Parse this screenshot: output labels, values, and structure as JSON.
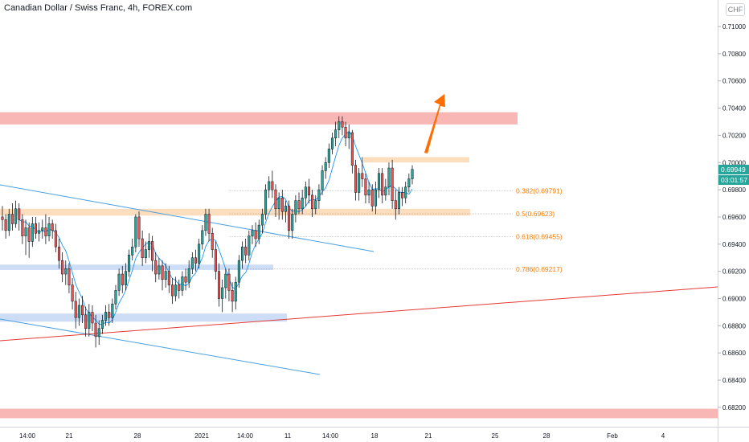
{
  "header": {
    "title": "Canadian Dollar / Swiss Franc, 4h, FOREX.com",
    "currency": "CHF"
  },
  "price_badges": {
    "last_price": "0.69949",
    "countdown": "03:01:57"
  },
  "colors": {
    "bull": "#26a69a",
    "bear": "#ef5350",
    "ma": "#2196f3",
    "red_zone": "#f7a9a8",
    "orange_zone": "#fcd8b4",
    "blue_zone": "#c5d7f5",
    "fib": "#f57c00",
    "trend_blue": "#4a9fe0",
    "trend_red": "#e53935",
    "arrow": "#ff6d00"
  },
  "chart_data": {
    "type": "candlestick",
    "title": "Canadian Dollar / Swiss Franc, 4h, FOREX.com",
    "ylim": [
      0.6812,
      0.7123
    ],
    "y_ticks": [
      "0.71000",
      "0.70800",
      "0.70600",
      "0.70400",
      "0.70200",
      "0.70000",
      "0.69800",
      "0.69600",
      "0.69400",
      "0.69200",
      "0.69000",
      "0.68800",
      "0.68600",
      "0.68400",
      "0.68200"
    ],
    "x_ticks": [
      "14:00",
      "21",
      "28",
      "2021",
      "14:00",
      "11",
      "14:00",
      "18",
      "21",
      "25",
      "28",
      "Feb",
      "4"
    ],
    "last_price": 0.69949,
    "fib_levels": [
      {
        "label": "0.382(0.69791)",
        "value": 0.69791
      },
      {
        "label": "0.5(0.69623)",
        "value": 0.69623
      },
      {
        "label": "0.618(0.69455)",
        "value": 0.69455
      },
      {
        "label": "0.786(0.69217)",
        "value": 0.69217
      }
    ],
    "zones": [
      {
        "name": "resistance-zone-top",
        "color": "red",
        "from": 0.7028,
        "to": 0.7037
      },
      {
        "name": "supply-zone-small",
        "color": "orange",
        "from": 0.7,
        "to": 0.7004
      },
      {
        "name": "support-zone-mid",
        "color": "orange",
        "from": 0.6961,
        "to": 0.6966
      },
      {
        "name": "demand-zone-1",
        "color": "blue",
        "from": 0.6921,
        "to": 0.6925
      },
      {
        "name": "demand-zone-2",
        "color": "blue",
        "from": 0.6883,
        "to": 0.6889
      },
      {
        "name": "resistance-zone-bottom",
        "color": "red",
        "from": 0.6812,
        "to": 0.6819
      }
    ],
    "candles": [
      [
        0.696,
        0.6958,
        0.6968,
        0.695
      ],
      [
        0.6958,
        0.695,
        0.6962,
        0.6944
      ],
      [
        0.695,
        0.6962,
        0.6966,
        0.6946
      ],
      [
        0.6962,
        0.6955,
        0.697,
        0.695
      ],
      [
        0.6955,
        0.6966,
        0.6972,
        0.6952
      ],
      [
        0.6966,
        0.6958,
        0.697,
        0.695
      ],
      [
        0.6958,
        0.6946,
        0.6962,
        0.694
      ],
      [
        0.6946,
        0.6952,
        0.6958,
        0.6932
      ],
      [
        0.6952,
        0.6942,
        0.6956,
        0.693
      ],
      [
        0.6942,
        0.6955,
        0.696,
        0.6938
      ],
      [
        0.6955,
        0.6948,
        0.696,
        0.6944
      ],
      [
        0.6948,
        0.695,
        0.6956,
        0.6942
      ],
      [
        0.695,
        0.6952,
        0.6958,
        0.6944
      ],
      [
        0.6952,
        0.6946,
        0.6962,
        0.694
      ],
      [
        0.6946,
        0.6955,
        0.696,
        0.6942
      ],
      [
        0.6955,
        0.695,
        0.6958,
        0.6944
      ],
      [
        0.695,
        0.6938,
        0.6955,
        0.6934
      ],
      [
        0.6938,
        0.6928,
        0.6944,
        0.6922
      ],
      [
        0.6928,
        0.6918,
        0.6934,
        0.6912
      ],
      [
        0.6918,
        0.6922,
        0.6928,
        0.691
      ],
      [
        0.6922,
        0.691,
        0.6926,
        0.6904
      ],
      [
        0.691,
        0.6898,
        0.6915,
        0.6892
      ],
      [
        0.6898,
        0.6886,
        0.6905,
        0.6878
      ],
      [
        0.6886,
        0.6895,
        0.69,
        0.688
      ],
      [
        0.6895,
        0.6888,
        0.6902,
        0.6882
      ],
      [
        0.6888,
        0.6878,
        0.6894,
        0.6872
      ],
      [
        0.6878,
        0.689,
        0.6896,
        0.6872
      ],
      [
        0.689,
        0.6882,
        0.6895,
        0.6876
      ],
      [
        0.6882,
        0.6872,
        0.6888,
        0.6864
      ],
      [
        0.6872,
        0.6878,
        0.6884,
        0.6866
      ],
      [
        0.6878,
        0.6884,
        0.6888,
        0.6874
      ],
      [
        0.6884,
        0.689,
        0.6895,
        0.688
      ],
      [
        0.689,
        0.6886,
        0.6896,
        0.688
      ],
      [
        0.6886,
        0.6896,
        0.69,
        0.6882
      ],
      [
        0.6896,
        0.6906,
        0.691,
        0.6892
      ],
      [
        0.6906,
        0.6918,
        0.6922,
        0.6902
      ],
      [
        0.6918,
        0.691,
        0.6924,
        0.6904
      ],
      [
        0.691,
        0.692,
        0.6926,
        0.6906
      ],
      [
        0.692,
        0.6932,
        0.6936,
        0.6916
      ],
      [
        0.6932,
        0.6938,
        0.6944,
        0.6928
      ],
      [
        0.6938,
        0.696,
        0.6962,
        0.6934
      ],
      [
        0.696,
        0.6944,
        0.6964,
        0.6938
      ],
      [
        0.6944,
        0.693,
        0.695,
        0.6924
      ],
      [
        0.693,
        0.6936,
        0.6942,
        0.6926
      ],
      [
        0.6936,
        0.6942,
        0.6948,
        0.693
      ],
      [
        0.6942,
        0.6928,
        0.6946,
        0.692
      ],
      [
        0.6928,
        0.6918,
        0.6934,
        0.6912
      ],
      [
        0.6918,
        0.6924,
        0.693,
        0.6914
      ],
      [
        0.6924,
        0.6914,
        0.6928,
        0.6906
      ],
      [
        0.6914,
        0.692,
        0.6926,
        0.6908
      ],
      [
        0.692,
        0.691,
        0.6924,
        0.6904
      ],
      [
        0.691,
        0.6902,
        0.6915,
        0.6896
      ],
      [
        0.6902,
        0.691,
        0.6916,
        0.6898
      ],
      [
        0.691,
        0.6906,
        0.6914,
        0.69
      ],
      [
        0.6906,
        0.6916,
        0.692,
        0.6902
      ],
      [
        0.6916,
        0.6912,
        0.6922,
        0.6906
      ],
      [
        0.6912,
        0.6922,
        0.6928,
        0.6908
      ],
      [
        0.6922,
        0.693,
        0.6934,
        0.6918
      ],
      [
        0.693,
        0.6926,
        0.6936,
        0.692
      ],
      [
        0.6926,
        0.694,
        0.6944,
        0.6922
      ],
      [
        0.694,
        0.695,
        0.6954,
        0.6936
      ],
      [
        0.695,
        0.6962,
        0.6966,
        0.6946
      ],
      [
        0.6962,
        0.6948,
        0.6966,
        0.6942
      ],
      [
        0.6948,
        0.6936,
        0.6952,
        0.693
      ],
      [
        0.6936,
        0.692,
        0.6942,
        0.6914
      ],
      [
        0.692,
        0.69,
        0.6926,
        0.6894
      ],
      [
        0.69,
        0.6908,
        0.6914,
        0.689
      ],
      [
        0.6908,
        0.6918,
        0.6922,
        0.69
      ],
      [
        0.6918,
        0.6906,
        0.6922,
        0.6898
      ],
      [
        0.6906,
        0.6898,
        0.6912,
        0.689
      ],
      [
        0.6898,
        0.6912,
        0.6916,
        0.6892
      ],
      [
        0.6912,
        0.6928,
        0.6932,
        0.6908
      ],
      [
        0.6928,
        0.6938,
        0.6942,
        0.6922
      ],
      [
        0.6938,
        0.6932,
        0.6944,
        0.6926
      ],
      [
        0.6932,
        0.6946,
        0.695,
        0.6928
      ],
      [
        0.6946,
        0.695,
        0.6954,
        0.694
      ],
      [
        0.695,
        0.6944,
        0.6956,
        0.6938
      ],
      [
        0.6944,
        0.6954,
        0.6958,
        0.694
      ],
      [
        0.6954,
        0.6962,
        0.6966,
        0.6948
      ],
      [
        0.6962,
        0.698,
        0.6984,
        0.6958
      ],
      [
        0.698,
        0.6986,
        0.699,
        0.6974
      ],
      [
        0.6986,
        0.698,
        0.6994,
        0.6974
      ],
      [
        0.698,
        0.6966,
        0.6984,
        0.696
      ],
      [
        0.6966,
        0.6974,
        0.6978,
        0.6958
      ],
      [
        0.6974,
        0.6964,
        0.698,
        0.6958
      ],
      [
        0.6964,
        0.6968,
        0.6972,
        0.6956
      ],
      [
        0.6968,
        0.695,
        0.6972,
        0.6944
      ],
      [
        0.695,
        0.6962,
        0.6966,
        0.6944
      ],
      [
        0.6962,
        0.6972,
        0.6976,
        0.6956
      ],
      [
        0.6972,
        0.6966,
        0.6978,
        0.6962
      ],
      [
        0.6966,
        0.6974,
        0.698,
        0.6962
      ],
      [
        0.6974,
        0.6982,
        0.6986,
        0.6968
      ],
      [
        0.6982,
        0.6976,
        0.6988,
        0.697
      ],
      [
        0.6976,
        0.6966,
        0.698,
        0.696
      ],
      [
        0.6966,
        0.6972,
        0.6976,
        0.6962
      ],
      [
        0.6972,
        0.698,
        0.6984,
        0.6966
      ],
      [
        0.698,
        0.6994,
        0.6998,
        0.6976
      ],
      [
        0.6994,
        0.7,
        0.7004,
        0.6988
      ],
      [
        0.7,
        0.701,
        0.7014,
        0.6996
      ],
      [
        0.701,
        0.7018,
        0.7022,
        0.7006
      ],
      [
        0.7018,
        0.7024,
        0.703,
        0.7012
      ],
      [
        0.7024,
        0.703,
        0.7034,
        0.7018
      ],
      [
        0.703,
        0.7026,
        0.7034,
        0.702
      ],
      [
        0.7026,
        0.7018,
        0.703,
        0.7012
      ],
      [
        0.7018,
        0.7022,
        0.7028,
        0.701
      ],
      [
        0.7022,
        0.6998,
        0.7024,
        0.6992
      ],
      [
        0.6998,
        0.6978,
        0.7002,
        0.6972
      ],
      [
        0.6978,
        0.6992,
        0.6996,
        0.6972
      ],
      [
        0.6992,
        0.6988,
        0.7004,
        0.6982
      ],
      [
        0.6988,
        0.6976,
        0.6992,
        0.697
      ],
      [
        0.6976,
        0.698,
        0.6986,
        0.697
      ],
      [
        0.698,
        0.6968,
        0.6984,
        0.6964
      ],
      [
        0.6968,
        0.698,
        0.6986,
        0.6962
      ],
      [
        0.698,
        0.6992,
        0.6996,
        0.6974
      ],
      [
        0.6992,
        0.6976,
        0.6996,
        0.697
      ],
      [
        0.6976,
        0.6982,
        0.6988,
        0.6972
      ],
      [
        0.6982,
        0.6996,
        0.7,
        0.6976
      ],
      [
        0.6996,
        0.6972,
        0.7002,
        0.6966
      ],
      [
        0.6972,
        0.6966,
        0.698,
        0.6958
      ],
      [
        0.6966,
        0.6978,
        0.6982,
        0.6962
      ],
      [
        0.6978,
        0.6974,
        0.6982,
        0.6968
      ],
      [
        0.6974,
        0.6982,
        0.6986,
        0.697
      ],
      [
        0.6982,
        0.6988,
        0.6992,
        0.6978
      ],
      [
        0.6988,
        0.6995,
        0.6998,
        0.6984
      ]
    ]
  }
}
